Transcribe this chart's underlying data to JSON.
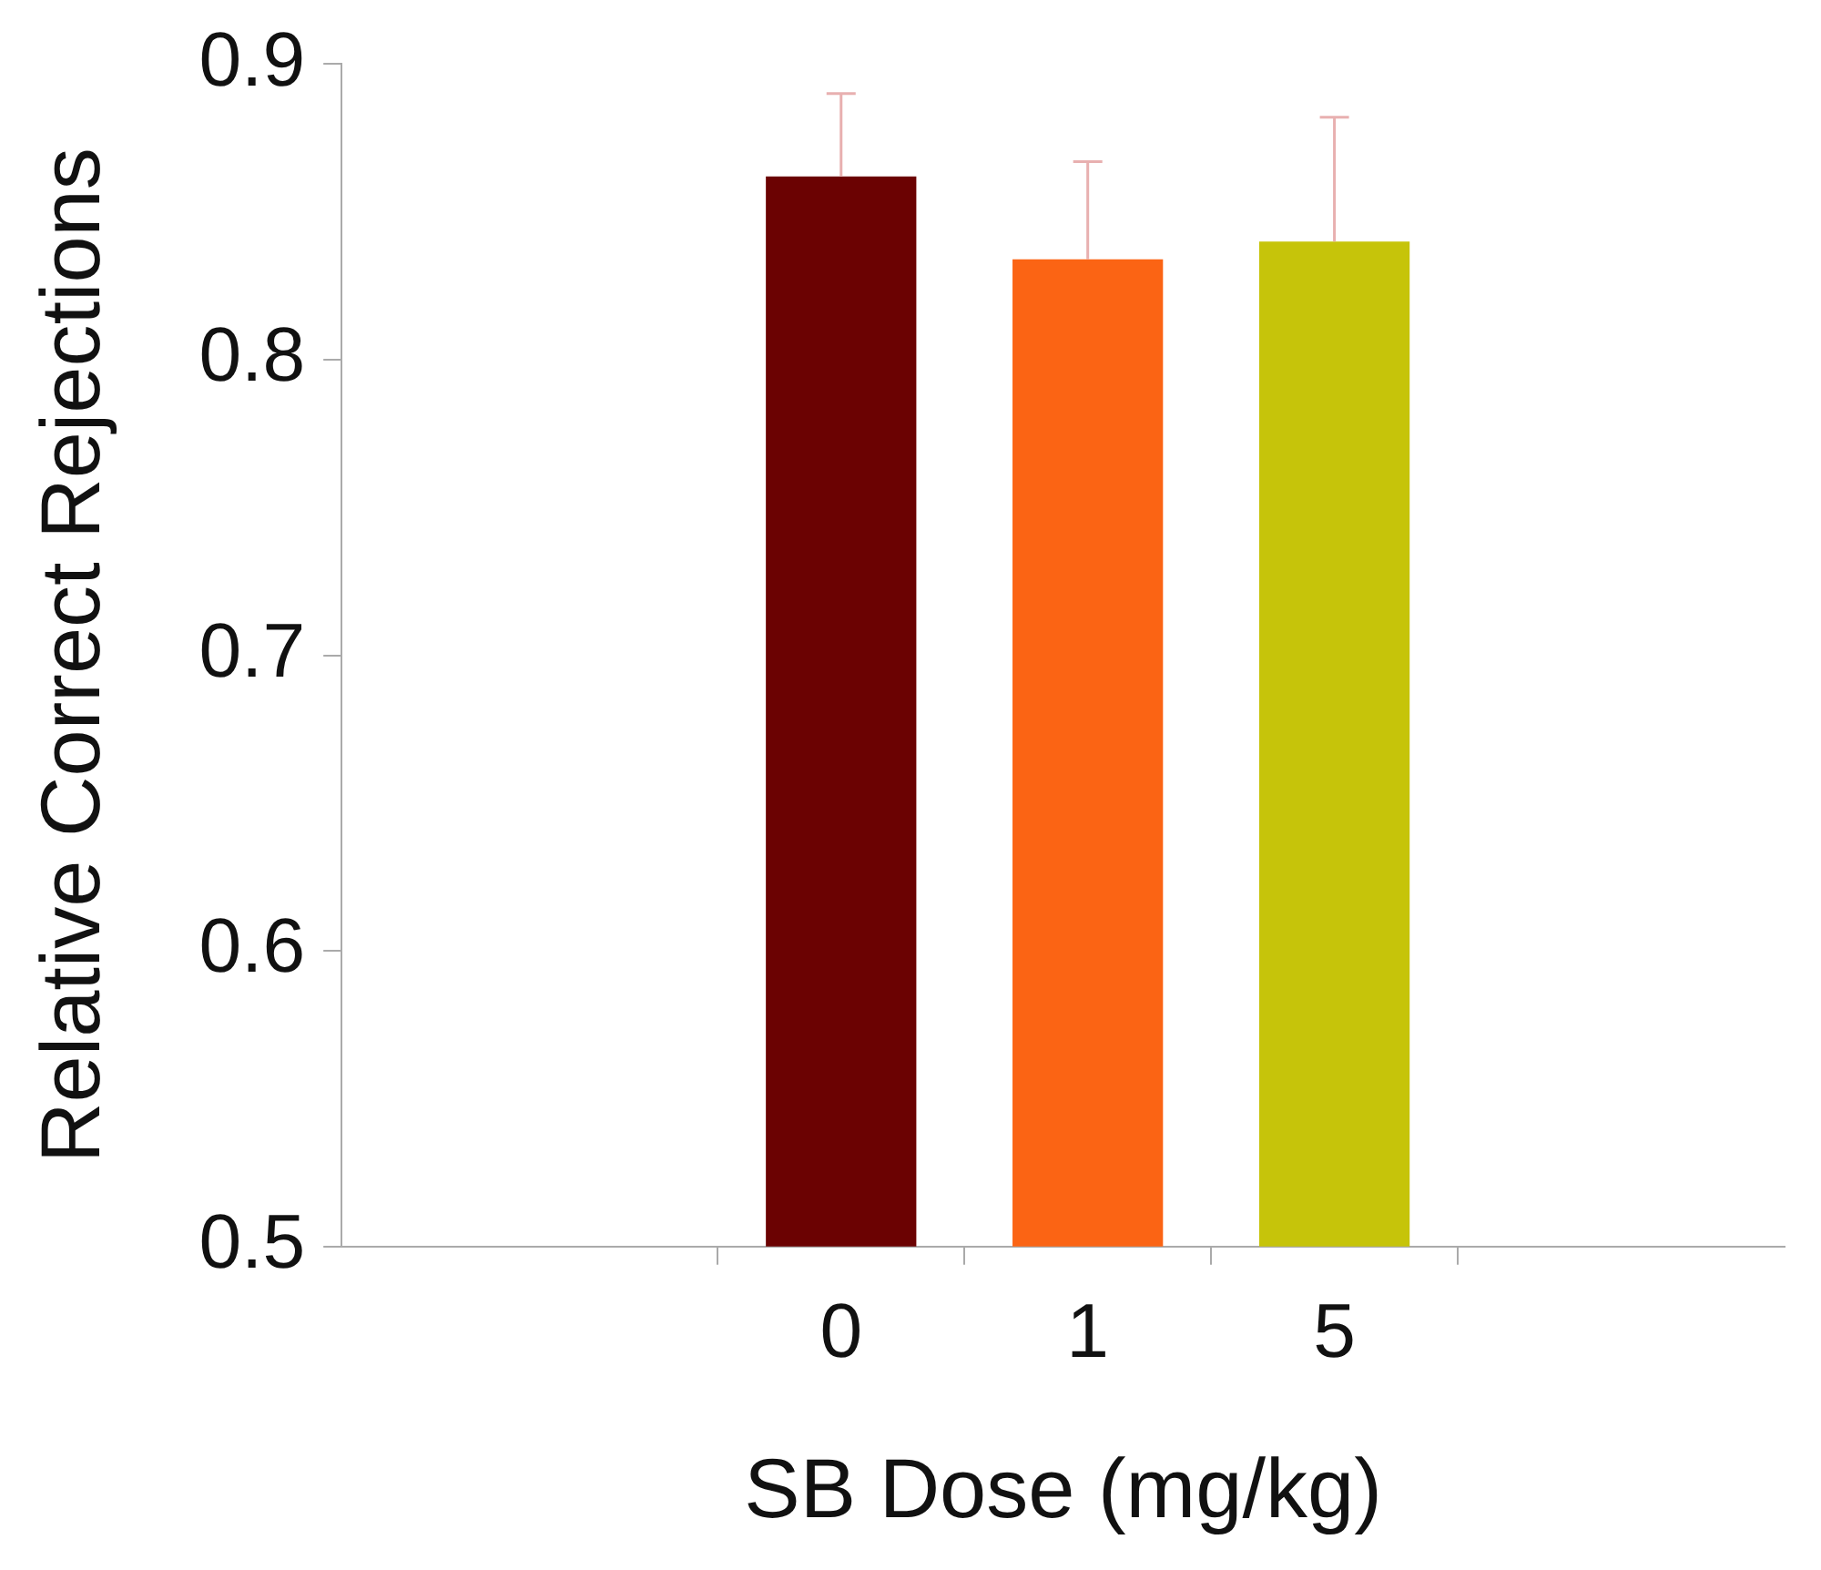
{
  "chart_data": {
    "type": "bar",
    "xlabel": "SB Dose (mg/kg)",
    "ylabel": "Relative Correct Rejections",
    "categories": [
      "0",
      "1",
      "5"
    ],
    "values": [
      0.862,
      0.834,
      0.84
    ],
    "colors": [
      "#6b0202",
      "#fb6414",
      "#c6c40a"
    ],
    "errors": [
      [
        0.862,
        0.89
      ],
      [
        0.834,
        0.867
      ],
      [
        0.84,
        0.882
      ]
    ],
    "ylim": [
      0.5,
      0.9
    ],
    "yticks": [
      0.5,
      0.6,
      0.7,
      0.8,
      0.9
    ],
    "grid": false,
    "legend": false
  }
}
